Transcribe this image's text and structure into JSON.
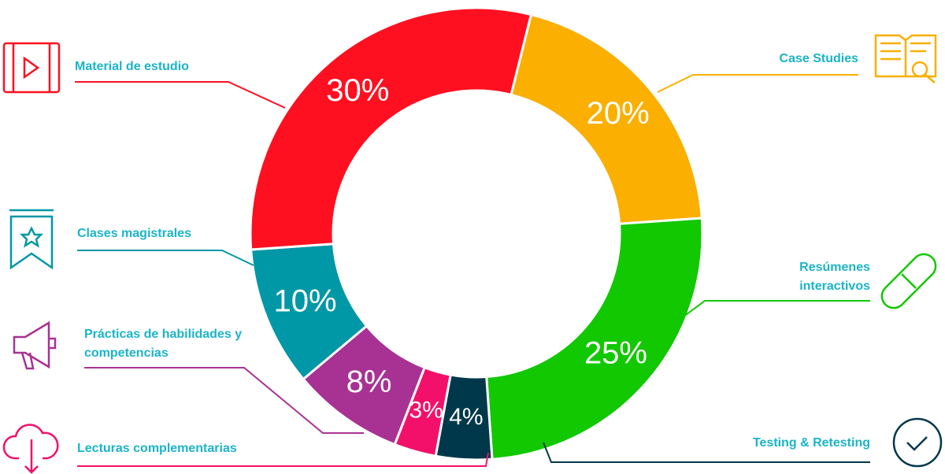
{
  "chart_data": {
    "type": "pie",
    "donut": true,
    "start_angle": 14,
    "categories": [
      "Case Studies",
      "Resúmenes interactivos",
      "Testing & Retesting",
      "Lecturas complementarias",
      "Prácticas de habilidades y competencias",
      "Clases magistrales",
      "Material de estudio"
    ],
    "values": [
      20,
      25,
      4,
      3,
      8,
      10,
      30
    ],
    "value_labels": [
      "20%",
      "25%",
      "4%",
      "3%",
      "8%",
      "10%",
      "30%"
    ],
    "colors": [
      "#fbaf00",
      "#12c800",
      "#00384b",
      "#f3106a",
      "#a83293",
      "#0097a7",
      "#fe1021"
    ],
    "label_color": "#1ab4c8"
  }
}
